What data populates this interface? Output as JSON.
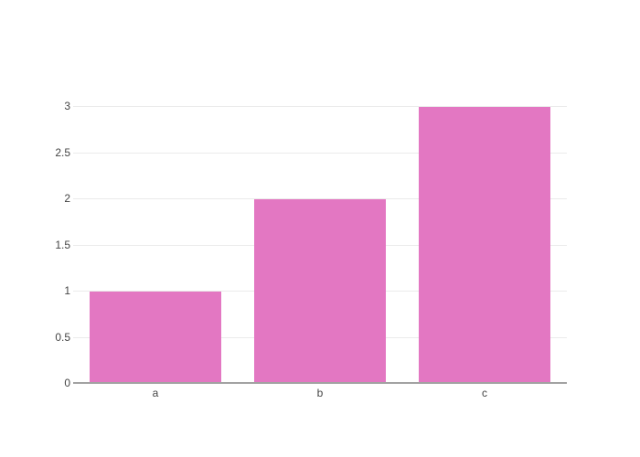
{
  "chart_data": {
    "type": "bar",
    "title": "",
    "xlabel": "",
    "ylabel": "",
    "categories": [
      "a",
      "b",
      "c"
    ],
    "values": [
      1,
      2,
      3
    ],
    "yticks": [
      0,
      0.5,
      1,
      1.5,
      2,
      2.5,
      3
    ],
    "ytick_labels": [
      "0",
      "0.5",
      "1",
      "1.5",
      "2",
      "2.5",
      "3"
    ],
    "ylim": [
      0,
      3.16
    ],
    "grid": "horizontal",
    "legend_position": "none",
    "colors": {
      "bar_fill": "#e377c2",
      "gridline": "#ebebeb",
      "axis_line": "#a2a2a2",
      "tick_label": "#444444",
      "background": "#ffffff"
    }
  }
}
